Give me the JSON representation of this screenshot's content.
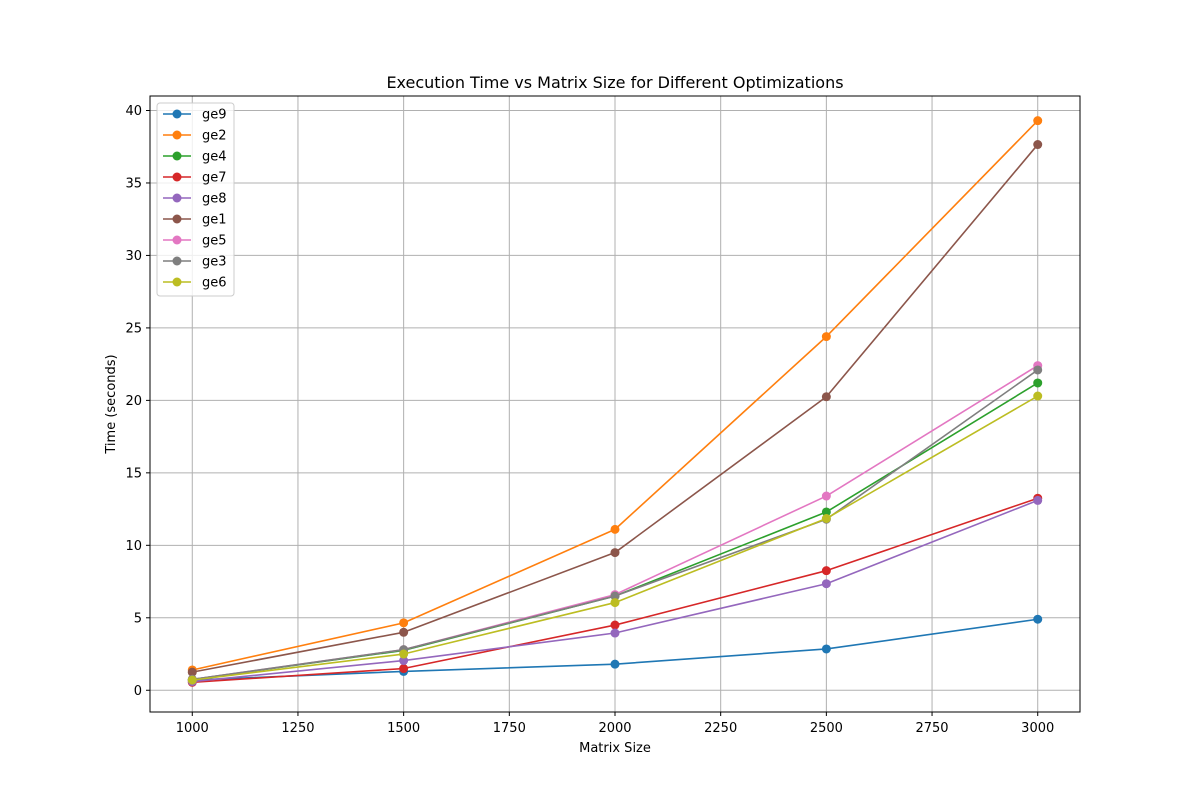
{
  "chart_data": {
    "type": "line",
    "title": "Execution Time vs Matrix Size for Different Optimizations",
    "xlabel": "Matrix Size",
    "ylabel": "Time (seconds)",
    "x": [
      1000,
      1500,
      2000,
      2500,
      3000
    ],
    "xlim": [
      900,
      3100
    ],
    "ylim": [
      -1.5,
      41.0
    ],
    "xticks": [
      1000,
      1250,
      1500,
      1750,
      2000,
      2250,
      2500,
      2750,
      3000
    ],
    "yticks": [
      0,
      5,
      10,
      15,
      20,
      25,
      30,
      35,
      40
    ],
    "grid": true,
    "legend_position": "top-left",
    "series": [
      {
        "name": "ge9",
        "color": "#1f77b4",
        "values": [
          0.7,
          1.3,
          1.8,
          2.85,
          4.9
        ]
      },
      {
        "name": "ge2",
        "color": "#ff7f0e",
        "values": [
          1.4,
          4.65,
          11.1,
          24.4,
          39.3
        ]
      },
      {
        "name": "ge4",
        "color": "#2ca02c",
        "values": [
          0.75,
          2.75,
          6.5,
          12.3,
          21.2
        ]
      },
      {
        "name": "ge7",
        "color": "#d62728",
        "values": [
          0.55,
          1.5,
          4.5,
          8.25,
          13.25
        ]
      },
      {
        "name": "ge8",
        "color": "#9467bd",
        "values": [
          0.6,
          2.05,
          3.95,
          7.35,
          13.1
        ]
      },
      {
        "name": "ge1",
        "color": "#8c564b",
        "values": [
          1.25,
          4.0,
          9.5,
          20.25,
          37.65
        ]
      },
      {
        "name": "ge5",
        "color": "#e377c2",
        "values": [
          0.75,
          2.8,
          6.6,
          13.4,
          22.4
        ]
      },
      {
        "name": "ge3",
        "color": "#7f7f7f",
        "values": [
          0.75,
          2.8,
          6.5,
          11.8,
          22.1
        ]
      },
      {
        "name": "ge6",
        "color": "#bcbd22",
        "values": [
          0.7,
          2.5,
          6.05,
          11.85,
          20.3
        ]
      }
    ]
  }
}
